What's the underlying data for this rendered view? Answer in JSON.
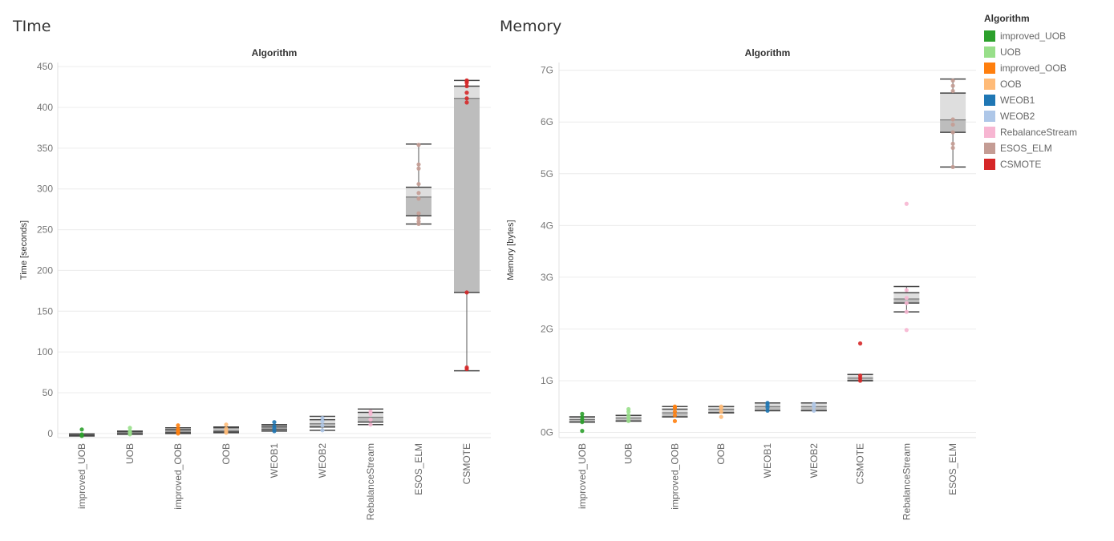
{
  "sheets": {
    "left_title": "TIme",
    "right_title": "Memory"
  },
  "legend": {
    "title": "Algorithm",
    "items": [
      {
        "label": "improved_UOB",
        "color": "#2ca02c"
      },
      {
        "label": "UOB",
        "color": "#98df8a"
      },
      {
        "label": "improved_OOB",
        "color": "#ff7f0e"
      },
      {
        "label": "OOB",
        "color": "#ffbb78"
      },
      {
        "label": "WEOB1",
        "color": "#1f77b4"
      },
      {
        "label": "WEOB2",
        "color": "#aec7e8"
      },
      {
        "label": "RebalanceStream",
        "color": "#f7b6d2"
      },
      {
        "label": "ESOS_ELM",
        "color": "#c49c94"
      },
      {
        "label": "CSMOTE",
        "color": "#d62728"
      }
    ]
  },
  "chart_data": [
    {
      "type": "box",
      "header": "Algorithm",
      "ylabel": "Time [seconds]",
      "ylim": [
        -5,
        455
      ],
      "yticks": [
        0,
        50,
        100,
        150,
        200,
        250,
        300,
        350,
        400,
        450
      ],
      "ytick_labels": [
        "0",
        "50",
        "100",
        "150",
        "200",
        "250",
        "300",
        "350",
        "400",
        "450"
      ],
      "categories": [
        "improved_UOB",
        "UOB",
        "improved_OOB",
        "OOB",
        "WEOB1",
        "WEOB2",
        "RebalanceStream",
        "ESOS_ELM",
        "CSMOTE"
      ],
      "boxes": [
        {
          "whisker_low": -3,
          "q1": -2,
          "median": -1.5,
          "q3": -1,
          "whisker_high": -0.5,
          "points": [
            -3,
            -2,
            -1,
            5
          ]
        },
        {
          "whisker_low": -1,
          "q1": -0.5,
          "median": 1,
          "q3": 2.5,
          "whisker_high": 3,
          "points": [
            -1,
            1,
            3,
            7
          ]
        },
        {
          "whisker_low": 0,
          "q1": 1,
          "median": 3,
          "q3": 5,
          "whisker_high": 7,
          "points": [
            0,
            2,
            4,
            6,
            10
          ]
        },
        {
          "whisker_low": 1,
          "q1": 2,
          "median": 4,
          "q3": 7,
          "whisker_high": 8,
          "points": [
            1,
            3,
            6,
            11
          ]
        },
        {
          "whisker_low": 3,
          "q1": 5,
          "median": 7,
          "q3": 9,
          "whisker_high": 11,
          "points": [
            3,
            6,
            9,
            14
          ]
        },
        {
          "whisker_low": 4,
          "q1": 8,
          "median": 12,
          "q3": 17,
          "whisker_high": 21,
          "points": [
            4,
            10,
            15,
            19
          ]
        },
        {
          "whisker_low": 11,
          "q1": 14,
          "median": 20,
          "q3": 26,
          "whisker_high": 30,
          "points": [
            11,
            17,
            24,
            27
          ]
        },
        {
          "whisker_low": 257,
          "q1": 267,
          "median": 290,
          "q3": 302,
          "whisker_high": 355,
          "points": [
            257,
            260,
            264,
            270,
            288,
            295,
            306,
            325,
            330,
            354
          ]
        },
        {
          "whisker_low": 77,
          "q1": 173,
          "median": 411,
          "q3": 426,
          "whisker_high": 433,
          "points": [
            79,
            81,
            173,
            406,
            411,
            418,
            426,
            430,
            432,
            433
          ]
        }
      ]
    },
    {
      "type": "box",
      "header": "Algorithm",
      "ylabel": "Memory [bytes]",
      "ylim": [
        -0.1,
        7.15
      ],
      "yticks": [
        0,
        1,
        2,
        3,
        4,
        5,
        6,
        7
      ],
      "ytick_labels": [
        "0G",
        "1G",
        "2G",
        "3G",
        "4G",
        "5G",
        "6G",
        "7G"
      ],
      "categories": [
        "improved_UOB",
        "UOB",
        "improved_OOB",
        "OOB",
        "WEOB1",
        "WEOB2",
        "CSMOTE",
        "RebalanceStream",
        "ESOS_ELM"
      ],
      "boxes": [
        {
          "whisker_low": 0.2,
          "q1": 0.2,
          "median": 0.25,
          "q3": 0.3,
          "whisker_high": 0.3,
          "points": [
            0.03,
            0.2,
            0.25,
            0.3,
            0.36
          ]
        },
        {
          "whisker_low": 0.22,
          "q1": 0.22,
          "median": 0.28,
          "q3": 0.33,
          "whisker_high": 0.33,
          "points": [
            0.22,
            0.28,
            0.33,
            0.4,
            0.45
          ]
        },
        {
          "whisker_low": 0.3,
          "q1": 0.3,
          "median": 0.38,
          "q3": 0.45,
          "whisker_high": 0.5,
          "points": [
            0.22,
            0.33,
            0.4,
            0.47,
            0.5
          ]
        },
        {
          "whisker_low": 0.38,
          "q1": 0.38,
          "median": 0.45,
          "q3": 0.5,
          "whisker_high": 0.5,
          "points": [
            0.3,
            0.4,
            0.47,
            0.5
          ]
        },
        {
          "whisker_low": 0.42,
          "q1": 0.42,
          "median": 0.5,
          "q3": 0.57,
          "whisker_high": 0.57,
          "points": [
            0.42,
            0.48,
            0.53,
            0.57
          ]
        },
        {
          "whisker_low": 0.42,
          "q1": 0.42,
          "median": 0.5,
          "q3": 0.57,
          "whisker_high": 0.57,
          "points": [
            0.42,
            0.5,
            0.55
          ]
        },
        {
          "whisker_low": 1.0,
          "q1": 1.0,
          "median": 1.05,
          "q3": 1.12,
          "whisker_high": 1.12,
          "points": [
            1.0,
            1.05,
            1.1,
            1.72
          ]
        },
        {
          "whisker_low": 2.33,
          "q1": 2.5,
          "median": 2.58,
          "q3": 2.7,
          "whisker_high": 2.82,
          "points": [
            1.98,
            2.33,
            2.5,
            2.6,
            2.75,
            4.42
          ]
        },
        {
          "whisker_low": 5.13,
          "q1": 5.8,
          "median": 6.04,
          "q3": 6.56,
          "whisker_high": 6.83,
          "points": [
            5.13,
            5.5,
            5.58,
            5.8,
            5.95,
            6.05,
            6.6,
            6.7,
            6.8
          ]
        }
      ]
    }
  ]
}
